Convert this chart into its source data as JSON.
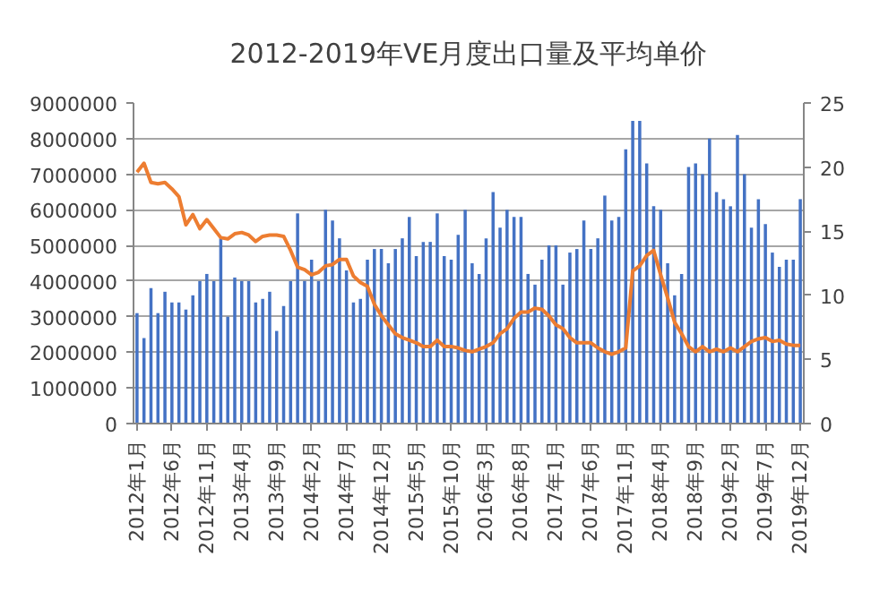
{
  "chart_data": {
    "type": "bar",
    "title": "2012-2019年VE月度出口量及平均单价",
    "categories": [
      "2012年1月",
      null,
      null,
      null,
      null,
      "2012年6月",
      null,
      null,
      null,
      null,
      "2012年11月",
      null,
      null,
      null,
      null,
      "2013年4月",
      null,
      null,
      null,
      null,
      "2013年9月",
      null,
      null,
      null,
      null,
      "2014年2月",
      null,
      null,
      null,
      null,
      "2014年7月",
      null,
      null,
      null,
      null,
      "2014年12月",
      null,
      null,
      null,
      null,
      "2015年5月",
      null,
      null,
      null,
      null,
      "2015年10月",
      null,
      null,
      null,
      null,
      "2016年3月",
      null,
      null,
      null,
      null,
      "2016年8月",
      null,
      null,
      null,
      null,
      "2017年1月",
      null,
      null,
      null,
      null,
      "2017年6月",
      null,
      null,
      null,
      null,
      "2017年11月",
      null,
      null,
      null,
      null,
      "2018年4月",
      null,
      null,
      null,
      null,
      "2018年9月",
      null,
      null,
      null,
      null,
      "2019年2月",
      null,
      null,
      null,
      null,
      "2019年7月",
      null,
      null,
      null,
      null,
      "2019年12月"
    ],
    "series": [
      {
        "color": "#4472c4",
        "values": [
          3100000,
          2400000,
          3800000,
          3100000,
          3700000,
          3400000,
          3400000,
          3200000,
          3600000,
          4000000,
          4200000,
          4000000,
          5200000,
          3000000,
          4100000,
          4000000,
          4000000,
          3400000,
          3500000,
          3700000,
          2600000,
          3300000,
          4000000,
          5900000,
          4000000,
          4600000,
          4000000,
          6000000,
          5700000,
          5200000,
          4300000,
          3400000,
          3500000,
          4600000,
          4900000,
          4900000,
          4500000,
          4900000,
          5200000,
          5800000,
          4700000,
          5100000,
          5100000,
          5900000,
          4700000,
          4600000,
          5300000,
          6000000,
          4500000,
          4200000,
          5200000,
          6500000,
          5500000,
          6000000,
          5800000,
          5800000,
          4200000,
          3900000,
          4600000,
          5000000,
          5000000,
          3900000,
          4800000,
          4900000,
          5700000,
          4900000,
          5200000,
          6400000,
          5700000,
          5800000,
          7700000,
          8500000,
          8500000,
          7300000,
          6100000,
          6000000,
          4500000,
          3600000,
          4200000,
          7200000,
          7300000,
          7000000,
          8000000,
          6500000,
          6300000,
          6100000,
          8100000,
          7000000,
          5500000,
          6300000,
          5600000,
          4800000,
          4400000,
          4600000,
          4600000,
          6300000
        ]
      },
      {
        "type": "line",
        "color": "#ed7d31",
        "axis": "y2",
        "values": [
          19.6,
          20.3,
          18.8,
          18.7,
          18.8,
          18.3,
          17.7,
          15.5,
          16.3,
          15.2,
          15.9,
          15.2,
          14.5,
          14.4,
          14.8,
          14.9,
          14.7,
          14.2,
          14.6,
          14.7,
          14.7,
          14.6,
          13.5,
          12.2,
          12.0,
          11.6,
          11.8,
          12.3,
          12.4,
          12.8,
          12.8,
          11.5,
          11.0,
          10.7,
          9.3,
          8.4,
          7.7,
          7.0,
          6.7,
          6.5,
          6.3,
          6.0,
          6.0,
          6.5,
          6.0,
          6.0,
          5.9,
          5.7,
          5.6,
          5.8,
          6.0,
          6.3,
          7.0,
          7.4,
          8.2,
          8.7,
          8.7,
          9.0,
          8.9,
          8.4,
          7.7,
          7.4,
          6.7,
          6.3,
          6.3,
          6.3,
          5.9,
          5.6,
          5.4,
          5.6,
          5.9,
          11.9,
          12.3,
          13.1,
          13.5,
          11.6,
          9.8,
          7.9,
          7.0,
          6.0,
          5.6,
          6.0,
          5.6,
          5.8,
          5.6,
          5.9,
          5.6,
          6.0,
          6.4,
          6.6,
          6.7,
          6.4,
          6.5,
          6.2,
          6.1,
          6.1
        ]
      }
    ],
    "ylim": [
      0,
      9000000
    ],
    "yticks": [
      0,
      1000000,
      2000000,
      3000000,
      4000000,
      5000000,
      6000000,
      7000000,
      8000000,
      9000000
    ],
    "y2lim": [
      0,
      25
    ],
    "y2ticks": [
      0,
      5,
      10,
      15,
      20,
      25
    ],
    "grid": "y",
    "line_style": "solid"
  }
}
